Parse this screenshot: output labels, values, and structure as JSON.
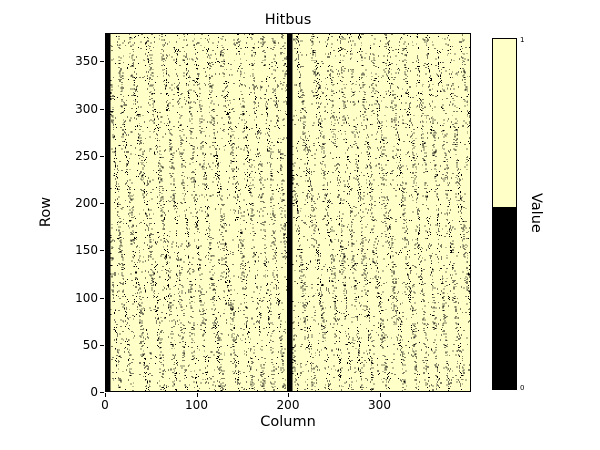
{
  "chart_data": {
    "type": "heatmap",
    "title": "Hitbus",
    "xlabel": "Column",
    "ylabel": "Row",
    "xlim": [
      0,
      400
    ],
    "ylim": [
      0,
      380
    ],
    "xticks": [
      0,
      100,
      200,
      300
    ],
    "yticks": [
      0,
      50,
      100,
      150,
      200,
      250,
      300,
      350
    ],
    "grid_cols": 400,
    "grid_rows": 380,
    "value_meaning": "binary hit map: 1 = hit (light yellow), 0 = no hit (black)",
    "background_value": 1,
    "colors": {
      "high": "#ffffc8",
      "low": "#000000",
      "figure_bg": "#ffffff"
    },
    "colorbar": {
      "label": "Value",
      "tick_high": "1",
      "tick_low": "0",
      "threshold_fraction": 0.52,
      "position": "right"
    },
    "features": {
      "solid_black_column_bands": [
        [
          0,
          4
        ],
        [
          199,
          204
        ]
      ],
      "noise_description": "sparse black pixels scattered in wavy vertical streak pattern over yellow background",
      "approx_black_density": 0.065,
      "seed": 1337
    },
    "legend": "none",
    "gridlines": false
  }
}
